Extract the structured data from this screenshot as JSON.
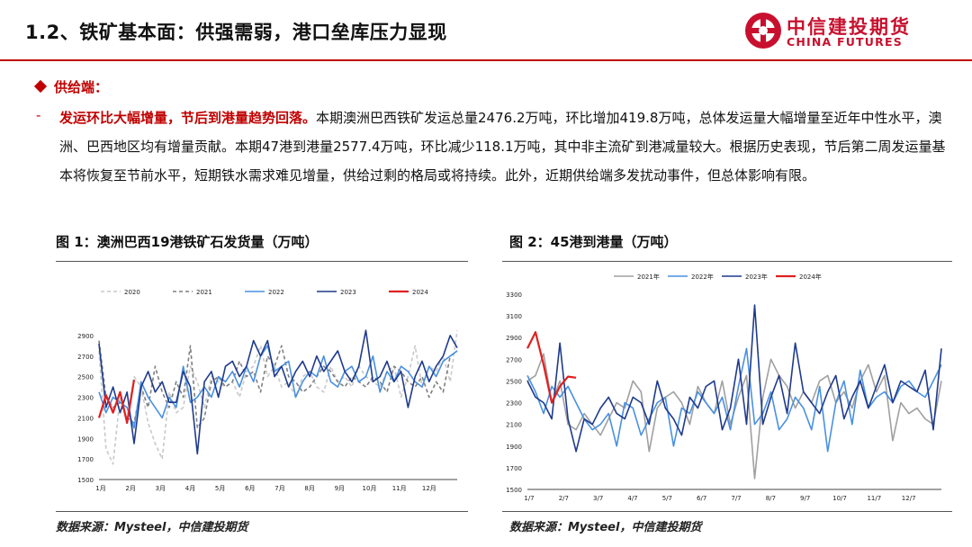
{
  "header": {
    "title": "1.2、铁矿基本面：供强需弱，港口垒库压力显现",
    "logo_cn": "中信建投期货",
    "logo_en": "CHINA FUTURES"
  },
  "section": {
    "heading": "供给端：",
    "bullet": "-",
    "highlight": "发运环比大幅增量，节后到港量趋势回落。",
    "body": "本期澳洲巴西铁矿发运总量2476.2万吨，环比增加419.8万吨，总体发运量大幅增量至近年中性水平，澳洲、巴西地区均有增量贡献。本期47港到港量2577.4万吨，环比减少118.1万吨，其中非主流矿到港减量较大。根据历史表现，节后第二周发运量基本将恢复至节前水平，短期铁水需求难见增量，供给过剩的格局或将持续。此外，近期供给端多发扰动事件，但总体影响有限。"
  },
  "figures": [
    {
      "title": "图 1：澳洲巴西19港铁矿石发货量（万吨）",
      "source": "数据来源：Mysteel，中信建投期货"
    },
    {
      "title": "图 2：45港到港量（万吨）",
      "source": "数据来源：Mysteel，中信建投期货"
    }
  ],
  "chart_data": [
    {
      "type": "line",
      "title": "澳洲巴西19港铁矿石发货量（万吨）",
      "x_tick_labels": [
        "1月",
        "2月",
        "3月",
        "4月",
        "5月",
        "6月",
        "7月",
        "8月",
        "9月",
        "10月",
        "11月",
        "12月"
      ],
      "x_range": [
        1,
        52
      ],
      "ylim": [
        1500,
        3100
      ],
      "y_ticks": [
        1500,
        1700,
        1900,
        2100,
        2300,
        2500,
        2700,
        2900
      ],
      "legend": "top",
      "series": [
        {
          "name": "2020",
          "color": "#c8c8c8",
          "dash": true,
          "x_start": 1,
          "values": [
            2750,
            1800,
            1650,
            2300,
            2100,
            2500,
            2400,
            2050,
            1850,
            1700,
            2350,
            2150,
            2200,
            2600,
            2450,
            2200,
            2500,
            2450,
            2400,
            2450,
            2300,
            2550,
            2600,
            2800,
            2500,
            2600,
            2400,
            2450,
            2300,
            2500,
            2550,
            2400,
            2350,
            2600,
            2450,
            2500,
            2400,
            2600,
            2500,
            2450,
            2400,
            2550,
            2600,
            2300,
            2500,
            2800,
            2400,
            2600,
            2550,
            2700,
            2450,
            2950
          ]
        },
        {
          "name": "2021",
          "color": "#7f7f7f",
          "dash": true,
          "x_start": 1,
          "values": [
            2850,
            2300,
            2200,
            2250,
            2100,
            2050,
            2400,
            2200,
            2600,
            2350,
            2200,
            2450,
            2300,
            2800,
            2000,
            2100,
            2450,
            2500,
            2400,
            2450,
            2650,
            2500,
            2550,
            2350,
            2700,
            2600,
            2800,
            2500,
            2450,
            2350,
            2400,
            2500,
            2600,
            2550,
            2450,
            2400,
            2500,
            2450,
            2400,
            2500,
            2450,
            2350,
            2600,
            2550,
            2450,
            2400,
            2500,
            2300,
            2450,
            2350,
            2700,
            2750
          ]
        },
        {
          "name": "2022",
          "color": "#4a90e2",
          "dash": false,
          "x_start": 1,
          "values": [
            2350,
            2150,
            2300,
            2250,
            2200,
            2000,
            2450,
            2300,
            2200,
            2100,
            2300,
            2200,
            2600,
            2250,
            2300,
            2400,
            2300,
            2500,
            2450,
            2550,
            2400,
            2600,
            2450,
            2700,
            2800,
            2550,
            2600,
            2650,
            2300,
            2450,
            2550,
            2500,
            2700,
            2450,
            2400,
            2550,
            2600,
            2450,
            2500,
            2700,
            2350,
            2550,
            2450,
            2600,
            2550,
            2450,
            2400,
            2600,
            2500,
            2650,
            2700,
            2750
          ]
        },
        {
          "name": "2023",
          "color": "#1f3a8c",
          "dash": false,
          "x_start": 1,
          "values": [
            2820,
            2200,
            2400,
            2150,
            2350,
            1850,
            2400,
            2550,
            2350,
            2450,
            2250,
            2250,
            2550,
            2400,
            1750,
            2450,
            2550,
            2300,
            2600,
            2650,
            2500,
            2600,
            2850,
            2700,
            2850,
            2500,
            2600,
            2400,
            2550,
            2650,
            2500,
            2700,
            2550,
            2650,
            2750,
            2550,
            2450,
            2600,
            2950,
            2450,
            2500,
            2650,
            2450,
            2550,
            2200,
            2500,
            2650,
            2450,
            2600,
            2700,
            2900,
            2780
          ]
        },
        {
          "name": "2024",
          "color": "#e02020",
          "dash": false,
          "x_start": 1,
          "values": [
            2100,
            2320,
            2150,
            2350,
            2050,
            2470
          ]
        }
      ]
    },
    {
      "type": "line",
      "title": "45港到港量（万吨）",
      "x_tick_labels": [
        "1/7",
        "2/7",
        "3/7",
        "4/7",
        "5/7",
        "6/7",
        "7/7",
        "8/7",
        "9/7",
        "10/7",
        "11/7",
        "12/7"
      ],
      "x_range": [
        1,
        52
      ],
      "ylim": [
        1500,
        3300
      ],
      "y_ticks": [
        1500,
        1700,
        1900,
        2100,
        2300,
        2500,
        2700,
        2900,
        3100,
        3300
      ],
      "legend": "top",
      "series": [
        {
          "name": "2021年",
          "color": "#a0a0a0",
          "dash": false,
          "x_start": 1,
          "values": [
            2500,
            2550,
            2750,
            2300,
            2500,
            2100,
            2050,
            2200,
            2100,
            2000,
            2150,
            2300,
            2250,
            2500,
            2400,
            1850,
            2250,
            2350,
            2400,
            2300,
            2100,
            2450,
            2300,
            2200,
            2500,
            2100,
            2350,
            2550,
            1600,
            2350,
            2700,
            2550,
            2450,
            2250,
            2400,
            2300,
            2500,
            2550,
            2300,
            2400,
            2250,
            2500,
            2650,
            2400,
            2550,
            1950,
            2300,
            2200,
            2250,
            2150,
            2100,
            2500
          ]
        },
        {
          "name": "2022年",
          "color": "#4a90e2",
          "dash": false,
          "x_start": 1,
          "values": [
            2550,
            2400,
            2200,
            2450,
            2350,
            2450,
            2300,
            2150,
            2050,
            2100,
            2200,
            1900,
            2300,
            2250,
            2000,
            2150,
            2300,
            2350,
            1900,
            2250,
            2200,
            2400,
            2300,
            2200,
            2350,
            2050,
            2450,
            2800,
            2100,
            2200,
            2400,
            2050,
            2150,
            2350,
            2250,
            2050,
            2450,
            1850,
            2300,
            2500,
            2100,
            2600,
            2250,
            2350,
            2400,
            2300,
            2450,
            2500,
            2400,
            2350,
            2500,
            2650
          ]
        },
        {
          "name": "2023年",
          "color": "#1f3a8c",
          "dash": false,
          "x_start": 1,
          "values": [
            2500,
            2350,
            2300,
            2150,
            2850,
            2150,
            1850,
            2150,
            2100,
            2250,
            2350,
            2200,
            2150,
            2350,
            2300,
            2100,
            2500,
            2250,
            2150,
            2000,
            2350,
            2250,
            2450,
            2500,
            2050,
            2250,
            2700,
            2100,
            3200,
            2100,
            2350,
            2550,
            2200,
            2850,
            2400,
            2300,
            2200,
            2400,
            2550,
            2150,
            2350,
            2500,
            2250,
            2450,
            2650,
            2300,
            2500,
            2450,
            2400,
            2600,
            2050,
            2800
          ]
        },
        {
          "name": "2024年",
          "color": "#e02020",
          "dash": false,
          "x_start": 1,
          "values": [
            2800,
            2950,
            2650,
            2300,
            2450,
            2540,
            2530
          ]
        }
      ]
    }
  ]
}
